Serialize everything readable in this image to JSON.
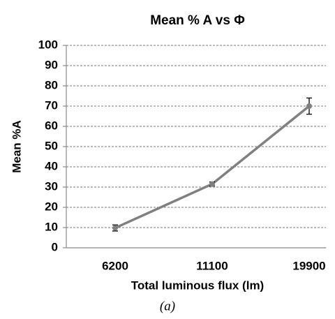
{
  "chart_data": {
    "type": "line",
    "title": "Mean % A vs Φ",
    "caption": "(a)",
    "xlabel": "Total luminous flux (lm)",
    "ylabel": "Mean %A",
    "categories": [
      "6200",
      "11100",
      "19900"
    ],
    "series": [
      {
        "name": "Mean %A",
        "color": "#808080",
        "values": [
          9.8,
          31.5,
          70
        ],
        "errors": [
          1.5,
          1,
          4
        ]
      }
    ],
    "ylim": [
      0,
      100
    ],
    "yticks": [
      0,
      10,
      20,
      30,
      40,
      50,
      60,
      70,
      80,
      90,
      100
    ],
    "grid": true
  }
}
